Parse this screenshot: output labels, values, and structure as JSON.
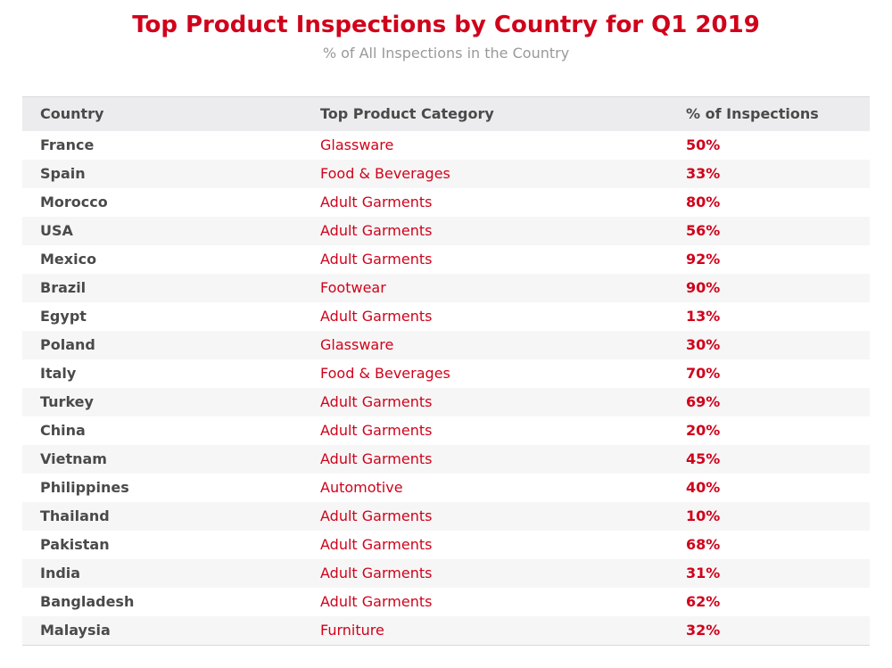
{
  "title": "Top Product Inspections by Country for Q1 2019",
  "subtitle": "% of All Inspections in the Country",
  "columns": [
    "Country",
    "Top Product Category",
    "% of Inspections"
  ],
  "colors": {
    "accent": "#d0021b",
    "text": "#4a4a4a",
    "subtitle": "#999999",
    "header_bg": "#ececee",
    "alt_row_bg": "#f6f6f6"
  },
  "chart_data": {
    "type": "table",
    "title": "Top Product Inspections by Country for Q1 2019",
    "subtitle": "% of All Inspections in the Country",
    "columns": [
      "Country",
      "Top Product Category",
      "% of Inspections"
    ],
    "rows": [
      [
        "France",
        "Glassware",
        "50%"
      ],
      [
        "Spain",
        "Food & Beverages",
        "33%"
      ],
      [
        "Morocco",
        "Adult Garments",
        "80%"
      ],
      [
        "USA",
        "Adult Garments",
        "56%"
      ],
      [
        "Mexico",
        "Adult Garments",
        "92%"
      ],
      [
        "Brazil",
        "Footwear",
        "90%"
      ],
      [
        "Egypt",
        "Adult Garments",
        "13%"
      ],
      [
        "Poland",
        "Glassware",
        "30%"
      ],
      [
        "Italy",
        "Food & Beverages",
        "70%"
      ],
      [
        "Turkey",
        "Adult Garments",
        "69%"
      ],
      [
        "China",
        "Adult Garments",
        "20%"
      ],
      [
        "Vietnam",
        "Adult Garments",
        "45%"
      ],
      [
        "Philippines",
        "Automotive",
        "40%"
      ],
      [
        "Thailand",
        "Adult Garments",
        "10%"
      ],
      [
        "Pakistan",
        "Adult Garments",
        "68%"
      ],
      [
        "India",
        "Adult Garments",
        "31%"
      ],
      [
        "Bangladesh",
        "Adult Garments",
        "62%"
      ],
      [
        "Malaysia",
        "Furniture",
        "32%"
      ]
    ]
  }
}
